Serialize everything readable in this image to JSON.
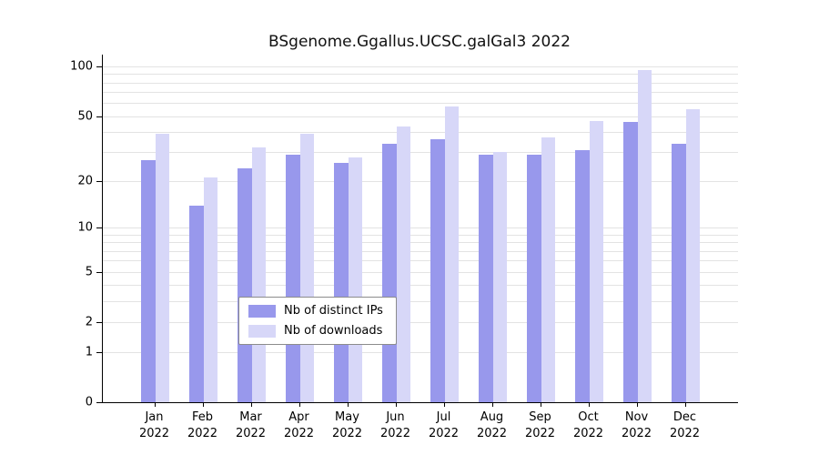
{
  "chart_data": {
    "type": "bar",
    "title": "BSgenome.Ggallus.UCSC.galGal3 2022",
    "categories": [
      "Jan",
      "Feb",
      "Mar",
      "Apr",
      "May",
      "Jun",
      "Jul",
      "Aug",
      "Sep",
      "Oct",
      "Nov",
      "Dec"
    ],
    "year_label": "2022",
    "series": [
      {
        "name": "Nb of distinct IPs",
        "color": "#9898ec",
        "values": [
          27,
          14,
          24,
          29,
          26,
          34,
          36,
          29,
          29,
          31,
          46,
          34
        ]
      },
      {
        "name": "Nb of downloads",
        "color": "#d7d7f8",
        "values": [
          39,
          21,
          32,
          39,
          28,
          43,
          57,
          30,
          37,
          47,
          95,
          55
        ]
      }
    ],
    "yscale": "log1p",
    "yticks": [
      0,
      1,
      2,
      5,
      10,
      20,
      50,
      100
    ],
    "gridlines": [
      1,
      2,
      3,
      4,
      5,
      6,
      7,
      8,
      9,
      10,
      20,
      30,
      40,
      50,
      60,
      70,
      80,
      90,
      100
    ],
    "ylim_top_value": 100,
    "legend_position": "bottom-center",
    "grid": true
  }
}
